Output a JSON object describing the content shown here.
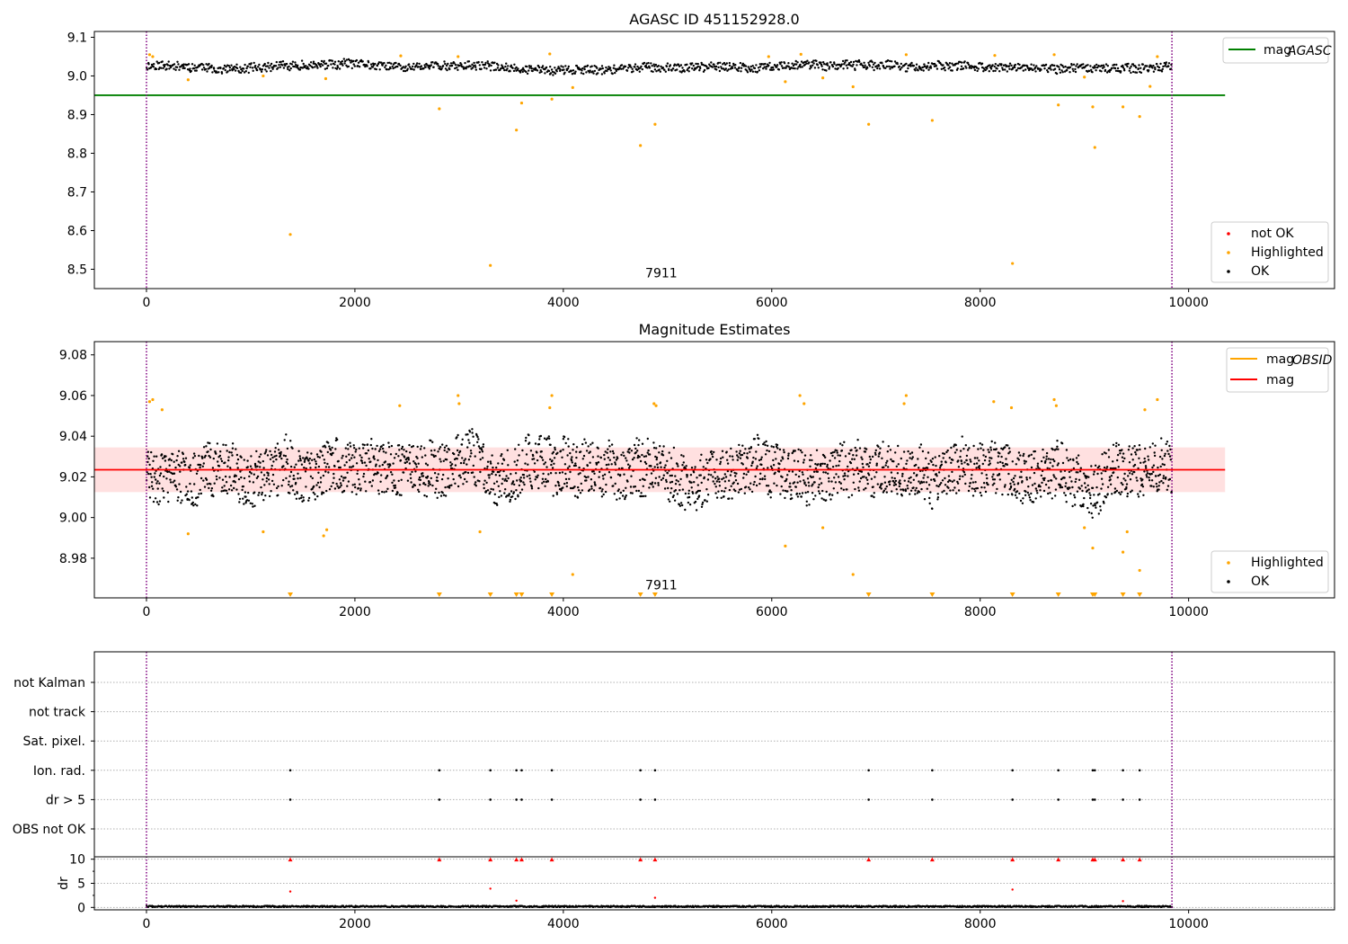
{
  "chart_data": [
    {
      "type": "scatter",
      "title": "AGASC ID 451152928.0",
      "xlim": [
        -500,
        11400
      ],
      "ylim": [
        8.45,
        9.115
      ],
      "xticks": [
        0,
        2000,
        4000,
        6000,
        8000,
        10000
      ],
      "xtick_labels": [
        "0",
        "2000",
        "4000",
        "6000",
        "8000",
        "10000"
      ],
      "yticks": [
        8.5,
        8.6,
        8.7,
        8.8,
        8.9,
        9.0,
        9.1
      ],
      "ytick_labels": [
        "8.5",
        "8.6",
        "8.7",
        "8.8",
        "8.9",
        "9.0",
        "9.1"
      ],
      "vlines": [
        0,
        9840
      ],
      "annotation": "7911",
      "annotation_x": 4940,
      "annotation_y": 8.47,
      "hline": {
        "name": "mag_AGASC",
        "legend": "mag",
        "legend_sub": "AGASC",
        "y": 8.95,
        "x_range": [
          -500,
          10350
        ],
        "color": "#008000"
      },
      "ok_band": {
        "center": 9.025,
        "amplitude": 0.012,
        "color": "#000000"
      },
      "highlighted_points": {
        "color": "#ffa500",
        "x": [
          1380,
          2810,
          3300,
          3550,
          3600,
          3890,
          4090,
          4740,
          4880,
          6930,
          7540,
          8310,
          8750,
          9080,
          9100,
          9370,
          9530,
          400,
          1120,
          1720,
          2990,
          6130,
          6490,
          6780,
          9000,
          9630,
          30,
          60,
          2440,
          3870,
          5970,
          6280,
          7290,
          8140,
          8710,
          9700
        ],
        "y": [
          8.59,
          8.915,
          8.51,
          8.86,
          8.93,
          8.94,
          8.97,
          8.82,
          8.875,
          8.875,
          8.885,
          8.515,
          8.925,
          8.92,
          8.815,
          8.92,
          8.895,
          8.99,
          9.0,
          8.993,
          9.05,
          8.985,
          8.995,
          8.972,
          8.997,
          8.973,
          9.055,
          9.05,
          9.052,
          9.057,
          9.05,
          9.056,
          9.055,
          9.053,
          9.055,
          9.05
        ]
      },
      "legend_points": [
        {
          "label": "not OK",
          "color": "#ff0000"
        },
        {
          "label": "Highlighted",
          "color": "#ffa500"
        },
        {
          "label": "OK",
          "color": "#000000"
        }
      ]
    },
    {
      "type": "scatter",
      "title": "Magnitude Estimates",
      "xlim": [
        -500,
        11400
      ],
      "ylim": [
        8.9605,
        9.0865
      ],
      "xticks": [
        0,
        2000,
        4000,
        6000,
        8000,
        10000
      ],
      "xtick_labels": [
        "0",
        "2000",
        "4000",
        "6000",
        "8000",
        "10000"
      ],
      "yticks": [
        8.98,
        9.0,
        9.02,
        9.04,
        9.06,
        9.08
      ],
      "ytick_labels": [
        "8.98",
        "9.00",
        "9.02",
        "9.04",
        "9.06",
        "9.08"
      ],
      "vlines": [
        0,
        9840
      ],
      "annotation": "7911",
      "annotation_x": 4940,
      "annotation_y": 8.963,
      "mag_line": {
        "name": "mag",
        "y": 9.0235,
        "x_range": [
          -500,
          10350
        ],
        "color": "#ff0000"
      },
      "mag_band": {
        "low": 9.0125,
        "high": 9.0345,
        "color": "#ff0000"
      },
      "ok_band": {
        "center": 9.0235,
        "amplitude": 0.011,
        "color": "#000000"
      },
      "highlighted_points": {
        "color": "#ffa500",
        "x": [
          30,
          60,
          150,
          400,
          1120,
          1700,
          1730,
          2430,
          2990,
          3000,
          3200,
          3870,
          3890,
          4090,
          4870,
          4890,
          6130,
          6270,
          6310,
          6490,
          6780,
          7270,
          7290,
          8130,
          8300,
          8710,
          8730,
          9000,
          9080,
          9370,
          9410,
          9530,
          9580,
          9700
        ],
        "y": [
          9.057,
          9.058,
          9.053,
          8.992,
          8.993,
          8.991,
          8.994,
          9.055,
          9.06,
          9.056,
          8.993,
          9.054,
          9.06,
          8.972,
          9.056,
          9.055,
          8.986,
          9.06,
          9.056,
          8.995,
          8.972,
          9.056,
          9.06,
          9.057,
          9.054,
          9.058,
          9.055,
          8.995,
          8.985,
          8.983,
          8.993,
          8.974,
          9.053,
          9.058
        ]
      },
      "clipped_low_markers": {
        "color": "#ffa500",
        "x": [
          1380,
          2810,
          3300,
          3550,
          3600,
          3890,
          4740,
          4880,
          6930,
          7540,
          8310,
          8750,
          9080,
          9100,
          9370,
          9530
        ]
      },
      "legend_lines": [
        {
          "label": "mag",
          "sub": "OBSID",
          "color": "#ffa500"
        },
        {
          "label": "mag",
          "sub": "",
          "color": "#ff0000"
        }
      ],
      "legend_points": [
        {
          "label": "Highlighted",
          "color": "#ffa500"
        },
        {
          "label": "OK",
          "color": "#000000"
        }
      ]
    },
    {
      "type": "scatter",
      "title": "",
      "xlim": [
        -500,
        11400
      ],
      "xticks": [
        0,
        2000,
        4000,
        6000,
        8000,
        10000
      ],
      "xtick_labels": [
        "0",
        "2000",
        "4000",
        "6000",
        "8000",
        "10000"
      ],
      "vlines": [
        0,
        9840
      ],
      "flag_rows": [
        "not Kalman",
        "not track",
        "Sat. pixel.",
        "Ion. rad.",
        "dr > 5",
        "OBS not OK"
      ],
      "flag_points": {
        "Ion. rad.": [
          1380,
          2810,
          3300,
          3550,
          3600,
          3890,
          4740,
          4880,
          6930,
          7540,
          8310,
          8750,
          9080,
          9100,
          9370,
          9530
        ],
        "dr > 5": [
          1380,
          2810,
          3300,
          3550,
          3600,
          3890,
          4740,
          4880,
          6930,
          7540,
          8310,
          8750,
          9080,
          9100,
          9370,
          9530
        ]
      },
      "dr": {
        "ylabel": "dr",
        "ylim": [
          -0.5,
          10.5
        ],
        "yticks": [
          0,
          5,
          10
        ],
        "ytick_labels": [
          "0",
          "5",
          "10"
        ],
        "clipped_x": [
          1380,
          2810,
          3300,
          3550,
          3600,
          3890,
          4740,
          4880,
          6930,
          7540,
          8310,
          8750,
          9080,
          9100,
          9370,
          9530
        ],
        "clipped_color": "#ff0000",
        "outliers": {
          "x": [
            1380,
            3300,
            8310,
            3550,
            4880,
            9370
          ],
          "y": [
            3.3,
            3.9,
            3.7,
            1.4,
            2.0,
            1.3
          ],
          "color": "#ff0000"
        },
        "baseline": {
          "center": 0.2,
          "amplitude": 0.15
        }
      }
    }
  ]
}
